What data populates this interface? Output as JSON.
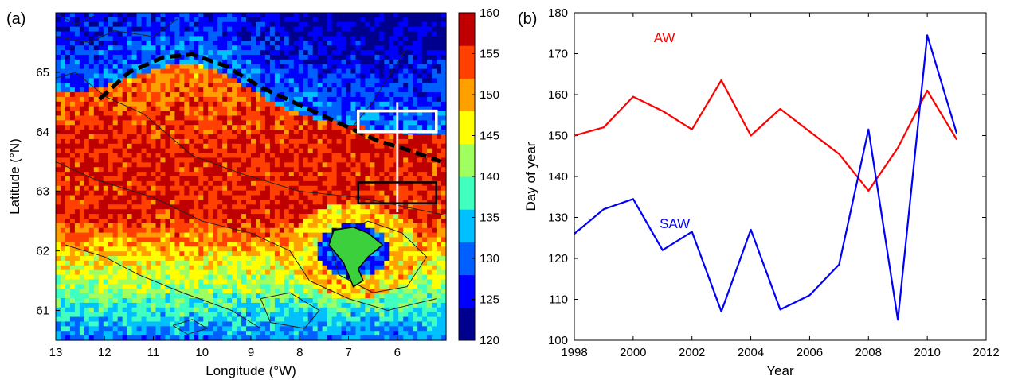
{
  "chart_data": [
    {
      "type": "heatmap",
      "panel_label": "(a)",
      "xlabel": "Longitude (°W)",
      "ylabel": "Latitude (°N)",
      "xlim": [
        13,
        5
      ],
      "ylim": [
        60.5,
        66
      ],
      "x_ticks": [
        "13",
        "12",
        "11",
        "10",
        "9",
        "8",
        "7",
        "6"
      ],
      "y_ticks": [
        "61",
        "62",
        "63",
        "64",
        "65"
      ],
      "colorbar": {
        "range": [
          120,
          160
        ],
        "ticks": [
          "160",
          "155",
          "150",
          "145",
          "140",
          "135",
          "130",
          "125",
          "120"
        ],
        "colors": [
          "#00008f",
          "#0000ff",
          "#0060ff",
          "#00c0ff",
          "#40ffbf",
          "#a0ff60",
          "#ffff00",
          "#ff9f00",
          "#ff4000",
          "#bf0000"
        ]
      },
      "front_line": [
        [
          12.1,
          64.55
        ],
        [
          11.5,
          65.0
        ],
        [
          10.8,
          65.25
        ],
        [
          10.2,
          65.3
        ],
        [
          9.5,
          65.1
        ],
        [
          8.8,
          64.75
        ],
        [
          8.0,
          64.45
        ],
        [
          7.2,
          64.15
        ],
        [
          6.4,
          63.85
        ],
        [
          5.8,
          63.7
        ],
        [
          5.1,
          63.5
        ]
      ],
      "boxes": [
        {
          "color": "white",
          "lon": [
            6.8,
            5.2
          ],
          "lat": [
            64.0,
            64.35
          ]
        },
        {
          "color": "black",
          "lon": [
            6.8,
            5.2
          ],
          "lat": [
            62.8,
            63.15
          ]
        }
      ],
      "section_line": {
        "lon": 6.0,
        "lat": [
          62.65,
          64.5
        ]
      }
    },
    {
      "type": "line",
      "panel_label": "(b)",
      "xlabel": "Year",
      "ylabel": "Day  of year",
      "xlim": [
        1998,
        2012
      ],
      "ylim": [
        100,
        180
      ],
      "x_ticks": [
        "1998",
        "2000",
        "2002",
        "2004",
        "2006",
        "2008",
        "2010",
        "2012"
      ],
      "y_ticks": [
        "100",
        "110",
        "120",
        "130",
        "140",
        "150",
        "160",
        "170",
        "180"
      ],
      "x": [
        1998,
        1999,
        2000,
        2001,
        2002,
        2003,
        2004,
        2005,
        2006,
        2007,
        2008,
        2009,
        2010,
        2011
      ],
      "series": [
        {
          "name": "AW",
          "color": "#ff0000",
          "values": [
            150,
            152,
            159.5,
            156,
            151.5,
            163.5,
            150,
            156.5,
            151,
            145.5,
            136.5,
            147,
            161,
            149
          ]
        },
        {
          "name": "SAW",
          "color": "#0000ff",
          "values": [
            126,
            132,
            134.5,
            122,
            126.5,
            107,
            127,
            107.5,
            111,
            118.5,
            151.5,
            105,
            174.5,
            150.5
          ]
        }
      ]
    }
  ]
}
